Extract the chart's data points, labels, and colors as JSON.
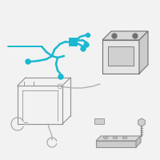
{
  "bg_color": "#f2f2f2",
  "wire_color": "#1ab8d0",
  "part_edge": "#909090",
  "battery_face": "#e8e8e8",
  "cable_color": "#aaaaaa",
  "dark_edge": "#707070"
}
